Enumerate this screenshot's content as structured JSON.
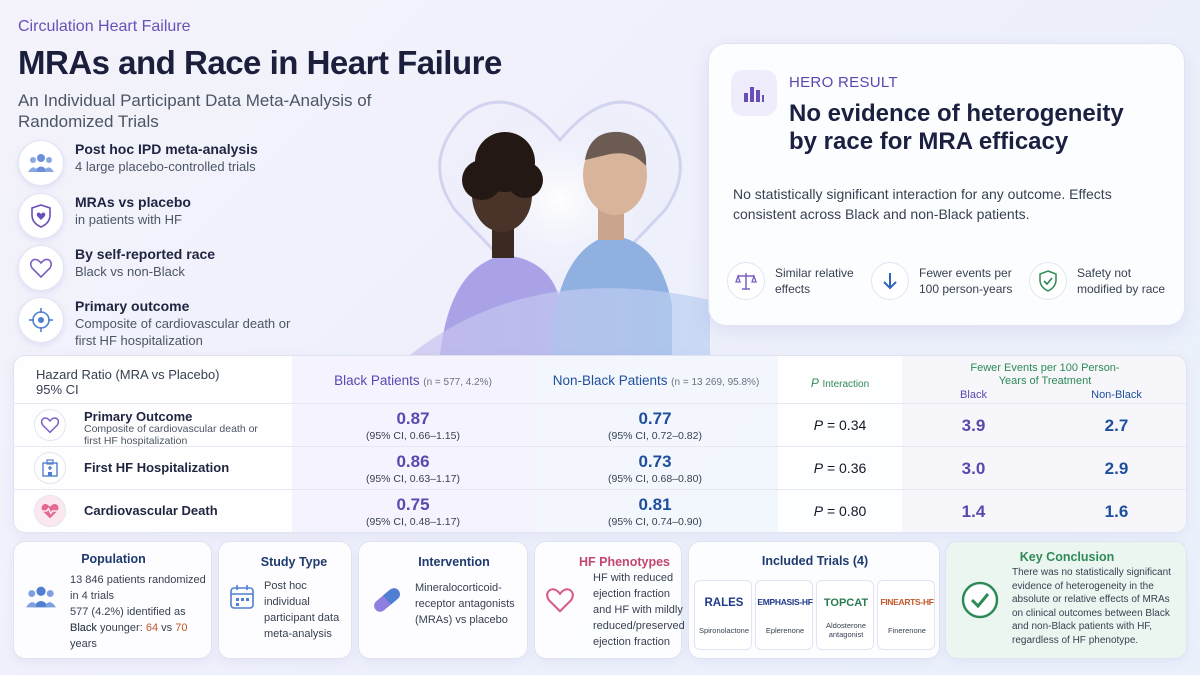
{
  "header": {
    "journal": "Circulation Heart Failure",
    "title": "MRAs and Race in Heart Failure",
    "subtitle": "An Individual Participant Data Meta-Analysis of Randomized Trials"
  },
  "features": [
    {
      "icon": "people-group-icon",
      "title": "Post hoc IPD meta-analysis",
      "desc": "4 large placebo-controlled trials"
    },
    {
      "icon": "shield-heart-icon",
      "title": "MRAs vs placebo",
      "desc": "in patients with HF"
    },
    {
      "icon": "heart-outline-icon",
      "title": "By self-reported race",
      "desc": "Black vs non-Black"
    },
    {
      "icon": "target-icon",
      "title": "Primary outcome",
      "desc": "Composite of cardiovascular death or first HF hospitalization"
    }
  ],
  "hero": {
    "label": "HERO RESULT",
    "headline": "No evidence of heterogeneity by race for MRA efficacy",
    "description": "No statistically significant interaction for any outcome. Effects consistent across Black and non-Black patients.",
    "sub_items": [
      {
        "icon": "balance-scale-icon",
        "text": "Similar relative effects"
      },
      {
        "icon": "arrow-down-icon",
        "text": "Fewer events per 100 person-years"
      },
      {
        "icon": "shield-check-icon",
        "text": "Safety not modified by race"
      }
    ]
  },
  "table": {
    "hr_header": "Hazard Ratio (MRA vs Placebo)",
    "ci_header": "95% CI",
    "black_header": "Black Patients",
    "black_n": "(n = 577, 4.2%)",
    "nonblack_header": "Non-Black Patients",
    "nonblack_n": "(n = 13 269, 95.8%)",
    "p_header_p": "P",
    "p_header_rest": "Interaction",
    "events_header": "Fewer Events per 100 Person-Years of Treatment",
    "events_black": "Black",
    "events_nonblack": "Non-Black",
    "rows": [
      {
        "icon": "heart-outline-icon",
        "title": "Primary Outcome",
        "desc": "Composite of cardiovascular death or first HF hospitalization",
        "black_hr": "0.87",
        "black_ci": "(95% CI, 0.66–1.15)",
        "nonblack_hr": "0.77",
        "nonblack_ci": "(95% CI, 0.72–0.82)",
        "p_label": "P",
        "p_value": "= 0.34",
        "ev_black": "3.9",
        "ev_nonblack": "2.7"
      },
      {
        "icon": "hospital-icon",
        "title": "First HF Hospitalization",
        "desc": "",
        "black_hr": "0.86",
        "black_ci": "(95% CI, 0.63–1.17)",
        "nonblack_hr": "0.73",
        "nonblack_ci": "(95% CI, 0.68–0.80)",
        "p_label": "P",
        "p_value": "= 0.36",
        "ev_black": "3.0",
        "ev_nonblack": "2.9"
      },
      {
        "icon": "heart-pulse-icon",
        "title": "Cardiovascular Death",
        "desc": "",
        "black_hr": "0.75",
        "black_ci": "(95% CI, 0.48–1.17)",
        "nonblack_hr": "0.81",
        "nonblack_ci": "(95% CI, 0.74–0.90)",
        "p_label": "P",
        "p_value": "= 0.80",
        "ev_black": "1.4",
        "ev_nonblack": "1.6"
      }
    ]
  },
  "bottom": {
    "population": {
      "title": "Population",
      "line1": "13 846 patients randomized in 4 trials",
      "line2": "577 (4.2%) identified as Black",
      "line3_pre": "Black younger:",
      "line3_a": "64",
      "line3_mid": "vs",
      "line3_b": "70",
      "line3_post": "years"
    },
    "study_type": {
      "title": "Study Type",
      "text": "Post hoc individual participant data meta-analysis"
    },
    "intervention": {
      "title": "Intervention",
      "text": "Mineralocorticoid-receptor antagonists (MRAs) vs placebo"
    },
    "phenotypes": {
      "title": "HF Phenotypes",
      "text": "HF with reduced ejection fraction and HF with mildly reduced/preserved ejection fraction"
    },
    "trials": {
      "title": "Included Trials (4)",
      "items": [
        {
          "name": "RALES",
          "drug": "Spironolactone"
        },
        {
          "name": "EMPHASIS-HF",
          "drug": "Eplerenone"
        },
        {
          "name": "TOPCAT",
          "drug": "Aldosterone antagonist"
        },
        {
          "name": "FINEARTS-HF",
          "drug": "Finerenone"
        }
      ]
    },
    "conclusion": {
      "title": "Key Conclusion",
      "text": "There was no statistically significant evidence of heterogeneity in the absolute or relative effects of MRAs on clinical outcomes between Black and non-Black patients with HF, regardless of HF phenotype."
    }
  },
  "colors": {
    "purple": "#5b47b0",
    "blue": "#1e4f9e",
    "green": "#2f8a57",
    "accent_orange": "#c2572a"
  }
}
